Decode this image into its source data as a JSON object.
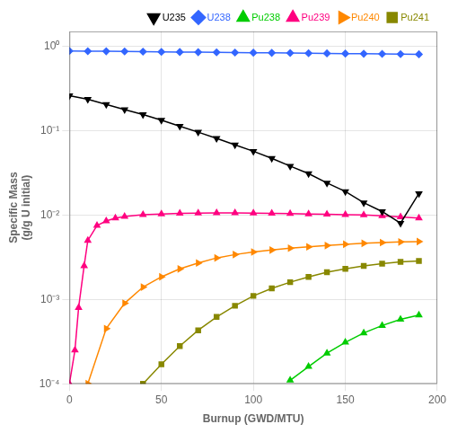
{
  "chart_data": {
    "type": "line",
    "xlabel": "Burnup (GWD/MTU)",
    "ylabel": "Specific Mass\n(g/g U initial)",
    "xlim": [
      0,
      200
    ],
    "xticks": [
      0,
      50,
      100,
      150,
      200
    ],
    "ylim": [
      0.0001,
      1.5
    ],
    "yticks": [
      {
        "value": 0.0001,
        "label": "10⁻⁴"
      },
      {
        "value": 0.001,
        "label": "10⁻³"
      },
      {
        "value": 0.01,
        "label": "10⁻²"
      },
      {
        "value": 0.1,
        "label": "10⁻¹"
      },
      {
        "value": 1,
        "label": "10⁰"
      }
    ],
    "log": "y",
    "grid": true,
    "legend": "upper right",
    "series": [
      {
        "name": "U235",
        "color": "#000000",
        "marker": "triangle_down",
        "x": [
          0,
          10,
          20,
          30,
          40,
          50,
          60,
          70,
          80,
          90,
          100,
          110,
          120,
          130,
          140,
          150,
          160,
          170,
          180,
          190
        ],
        "values": [
          0.26,
          0.235,
          0.205,
          0.178,
          0.155,
          0.133,
          0.113,
          0.096,
          0.081,
          0.068,
          0.057,
          0.047,
          0.038,
          0.031,
          0.024,
          0.019,
          0.014,
          0.011,
          0.008,
          0.018
        ]
      },
      {
        "name": "U238",
        "color": "#3366ff",
        "marker": "diamond",
        "x": [
          0,
          10,
          20,
          30,
          40,
          50,
          60,
          70,
          80,
          90,
          100,
          110,
          120,
          130,
          140,
          150,
          160,
          170,
          180,
          190
        ],
        "values": [
          0.88,
          0.876,
          0.872,
          0.868,
          0.864,
          0.86,
          0.856,
          0.852,
          0.848,
          0.844,
          0.84,
          0.836,
          0.832,
          0.828,
          0.824,
          0.82,
          0.816,
          0.812,
          0.808,
          0.804
        ]
      },
      {
        "name": "Pu238",
        "color": "#00cc00",
        "marker": "triangle_up",
        "x": [
          120,
          130,
          140,
          150,
          160,
          170,
          180,
          190
        ],
        "values": [
          0.00011,
          0.00016,
          0.00023,
          0.00031,
          0.0004,
          0.00049,
          0.00058,
          0.00065
        ]
      },
      {
        "name": "Pu239",
        "color": "#ff0080",
        "marker": "triangle_up",
        "x": [
          0,
          3,
          5,
          8,
          10,
          15,
          20,
          25,
          30,
          40,
          50,
          60,
          70,
          80,
          90,
          100,
          110,
          120,
          130,
          140,
          150,
          160,
          170,
          180,
          190
        ],
        "values": [
          0.0001,
          0.00025,
          0.0008,
          0.0025,
          0.005,
          0.0075,
          0.0085,
          0.0092,
          0.0096,
          0.0101,
          0.0103,
          0.0105,
          0.01055,
          0.0106,
          0.0106,
          0.01055,
          0.0105,
          0.0104,
          0.0103,
          0.0102,
          0.0101,
          0.01,
          0.0098,
          0.0095,
          0.0092
        ]
      },
      {
        "name": "Pu240",
        "color": "#ff8800",
        "marker": "triangle_right",
        "x": [
          10,
          20,
          30,
          40,
          50,
          60,
          70,
          80,
          90,
          100,
          110,
          120,
          130,
          140,
          150,
          160,
          170,
          180,
          190
        ],
        "values": [
          0.0001,
          0.00045,
          0.0009,
          0.0014,
          0.00185,
          0.0023,
          0.0027,
          0.0031,
          0.0034,
          0.00365,
          0.00385,
          0.00405,
          0.0042,
          0.00435,
          0.0045,
          0.00462,
          0.00472,
          0.0048,
          0.00485
        ]
      },
      {
        "name": "Pu241",
        "color": "#888800",
        "marker": "square",
        "x": [
          40,
          50,
          60,
          70,
          80,
          90,
          100,
          110,
          120,
          130,
          140,
          150,
          160,
          170,
          180,
          190
        ],
        "values": [
          0.0001,
          0.00017,
          0.00028,
          0.00043,
          0.00062,
          0.00084,
          0.0011,
          0.00135,
          0.0016,
          0.00185,
          0.0021,
          0.0023,
          0.0025,
          0.00265,
          0.00278,
          0.00285
        ]
      }
    ]
  }
}
